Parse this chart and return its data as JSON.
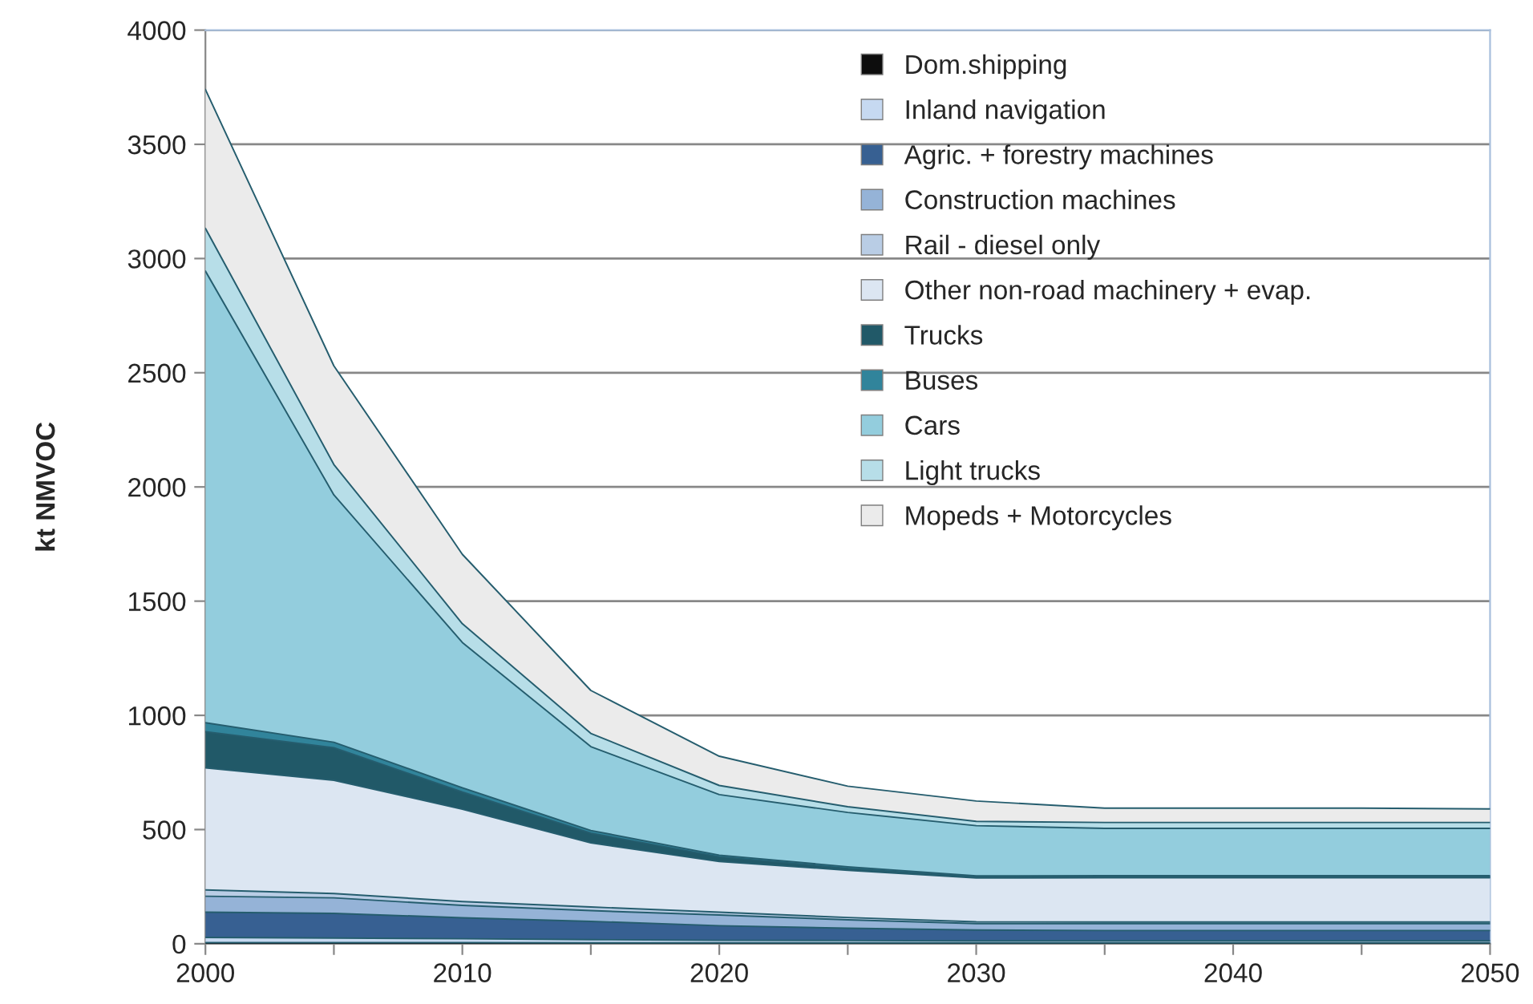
{
  "chart_data": {
    "type": "area",
    "stacked": true,
    "ylabel": "kt NMVOC",
    "x": [
      2000,
      2005,
      2010,
      2015,
      2020,
      2025,
      2030,
      2035,
      2040,
      2045,
      2050
    ],
    "series": [
      {
        "name": "Dom.shipping",
        "color": "#0d0d0d",
        "values": [
          5,
          5,
          5,
          4,
          4,
          4,
          4,
          4,
          4,
          4,
          4
        ]
      },
      {
        "name": "Inland navigation",
        "color": "#c6d9f1",
        "values": [
          23,
          20,
          17,
          14,
          11,
          10,
          9,
          9,
          9,
          9,
          9
        ]
      },
      {
        "name": "Agric. + forestry machines",
        "color": "#376092",
        "values": [
          110,
          108,
          92,
          80,
          64,
          54,
          47,
          45,
          45,
          45,
          45
        ]
      },
      {
        "name": "Construction machines",
        "color": "#95b3d7",
        "values": [
          70,
          68,
          54,
          47,
          47,
          37,
          28,
          30,
          30,
          30,
          30
        ]
      },
      {
        "name": "Rail - diesel only",
        "color": "#b9cde5",
        "values": [
          28,
          19,
          17,
          16,
          12,
          10,
          8,
          7,
          7,
          7,
          7
        ]
      },
      {
        "name": "Other non-road machinery + evap.",
        "color": "#dce6f2",
        "values": [
          534,
          496,
          404,
          281,
          222,
          207,
          192,
          194,
          194,
          194,
          194
        ]
      },
      {
        "name": "Trucks",
        "color": "#215968",
        "values": [
          158,
          142,
          75,
          42,
          21,
          8,
          4,
          4,
          4,
          4,
          4
        ]
      },
      {
        "name": "Buses",
        "color": "#31849b",
        "values": [
          40,
          24,
          19,
          12,
          7,
          7,
          5,
          5,
          5,
          5,
          5
        ]
      },
      {
        "name": "Cars",
        "color": "#93cddd",
        "values": [
          1977,
          1083,
          636,
          367,
          265,
          238,
          220,
          207,
          207,
          207,
          207
        ]
      },
      {
        "name": "Light trucks",
        "color": "#b7dee8",
        "values": [
          187,
          133,
          82,
          58,
          40,
          25,
          19,
          26,
          26,
          26,
          26
        ]
      },
      {
        "name": "Mopeds + Motorcycles",
        "color": "#ebebeb",
        "values": [
          608,
          432,
          304,
          188,
          128,
          90,
          89,
          63,
          63,
          63,
          59
        ]
      }
    ],
    "xlim": [
      2000,
      2050
    ],
    "xticks": [
      2000,
      {
        "value": 2005,
        "label": null
      },
      2010,
      {
        "value": 2015,
        "label": null
      },
      2020,
      {
        "value": 2025,
        "label": null
      },
      2030,
      {
        "value": 2035,
        "label": null
      },
      2040,
      {
        "value": 2045,
        "label": null
      },
      2050
    ],
    "ylim": [
      0,
      4000
    ],
    "yticks": [
      0,
      500,
      1000,
      1500,
      2000,
      2500,
      3000,
      3500,
      4000
    ],
    "grid": "y",
    "legend": "top right"
  }
}
